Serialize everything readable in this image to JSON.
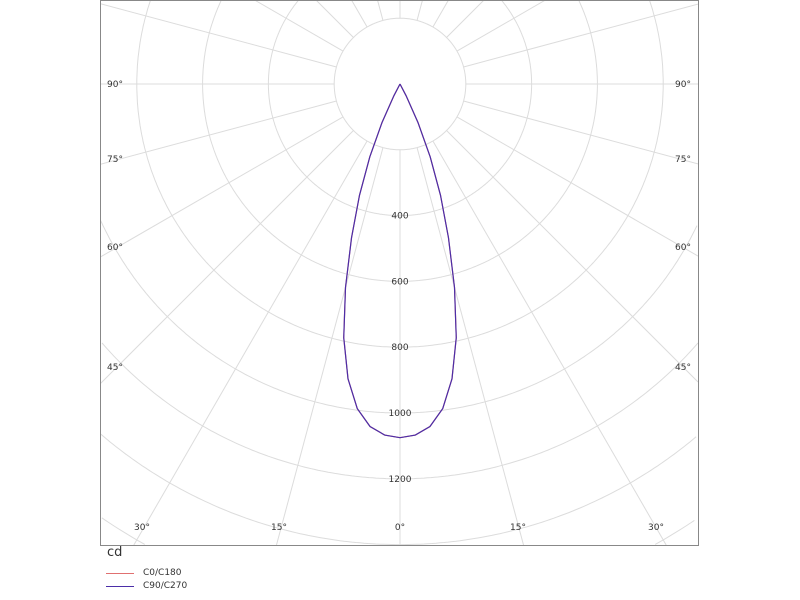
{
  "chart_data": {
    "type": "polar",
    "unit": "cd",
    "radial_ticks": [
      400,
      600,
      800,
      1000,
      1200
    ],
    "radial_grid": [
      200,
      400,
      600,
      800,
      1000,
      1200,
      1400,
      1600,
      1800,
      2000,
      2200
    ],
    "angle_grid_step": 15,
    "angle_labels": {
      "left": [
        "90°",
        "75°",
        "60°",
        "45°"
      ],
      "bottom": [
        "30°",
        "15°",
        "0°",
        "15°",
        "30°"
      ],
      "right": [
        "90°",
        "75°",
        "60°",
        "45°"
      ]
    },
    "angles": [
      0,
      2.5,
      5,
      7.5,
      10,
      12.5,
      15,
      17.5,
      20,
      22.5,
      25,
      27.5,
      30
    ],
    "series": [
      {
        "name": "C0/C180",
        "color": "#e07070",
        "values": [
          1075,
          1068,
          1045,
          995,
          910,
          790,
          640,
          490,
          360,
          240,
          130,
          40,
          0
        ]
      },
      {
        "name": "C90/C270",
        "color": "#4b2ea8",
        "values": [
          1075,
          1068,
          1045,
          995,
          910,
          790,
          640,
          490,
          360,
          240,
          130,
          40,
          0
        ]
      }
    ],
    "grid": true,
    "legend": "bottom-left"
  }
}
